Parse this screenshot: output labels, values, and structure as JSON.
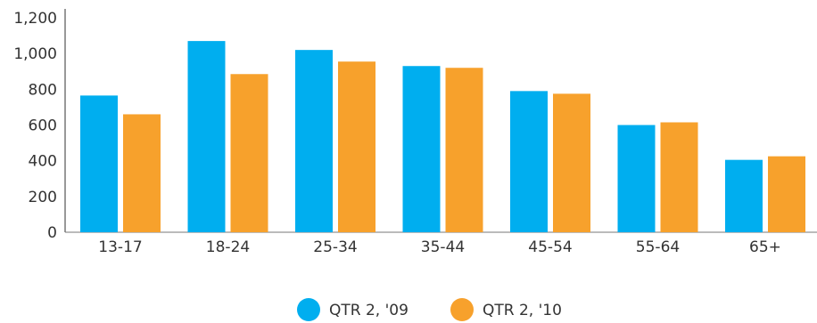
{
  "chart_data": {
    "type": "bar",
    "categories": [
      "13-17",
      "18-24",
      "25-34",
      "35-44",
      "45-54",
      "55-64",
      "65+"
    ],
    "series": [
      {
        "name": "QTR 2, '09",
        "color": "#00aeef",
        "values": [
          765,
          1070,
          1020,
          930,
          790,
          600,
          405
        ]
      },
      {
        "name": "QTR 2, '10",
        "color": "#f7a12c",
        "values": [
          660,
          885,
          955,
          920,
          775,
          615,
          425
        ]
      }
    ],
    "ylim": [
      0,
      1200
    ],
    "yticks": [
      0,
      200,
      400,
      600,
      800,
      1000,
      1200
    ],
    "ytick_labels": [
      "0",
      "200",
      "400",
      "600",
      "800",
      "1,000",
      "1,200"
    ],
    "grid": false,
    "legend_position": "bottom-center",
    "title": "",
    "xlabel": "",
    "ylabel": ""
  }
}
